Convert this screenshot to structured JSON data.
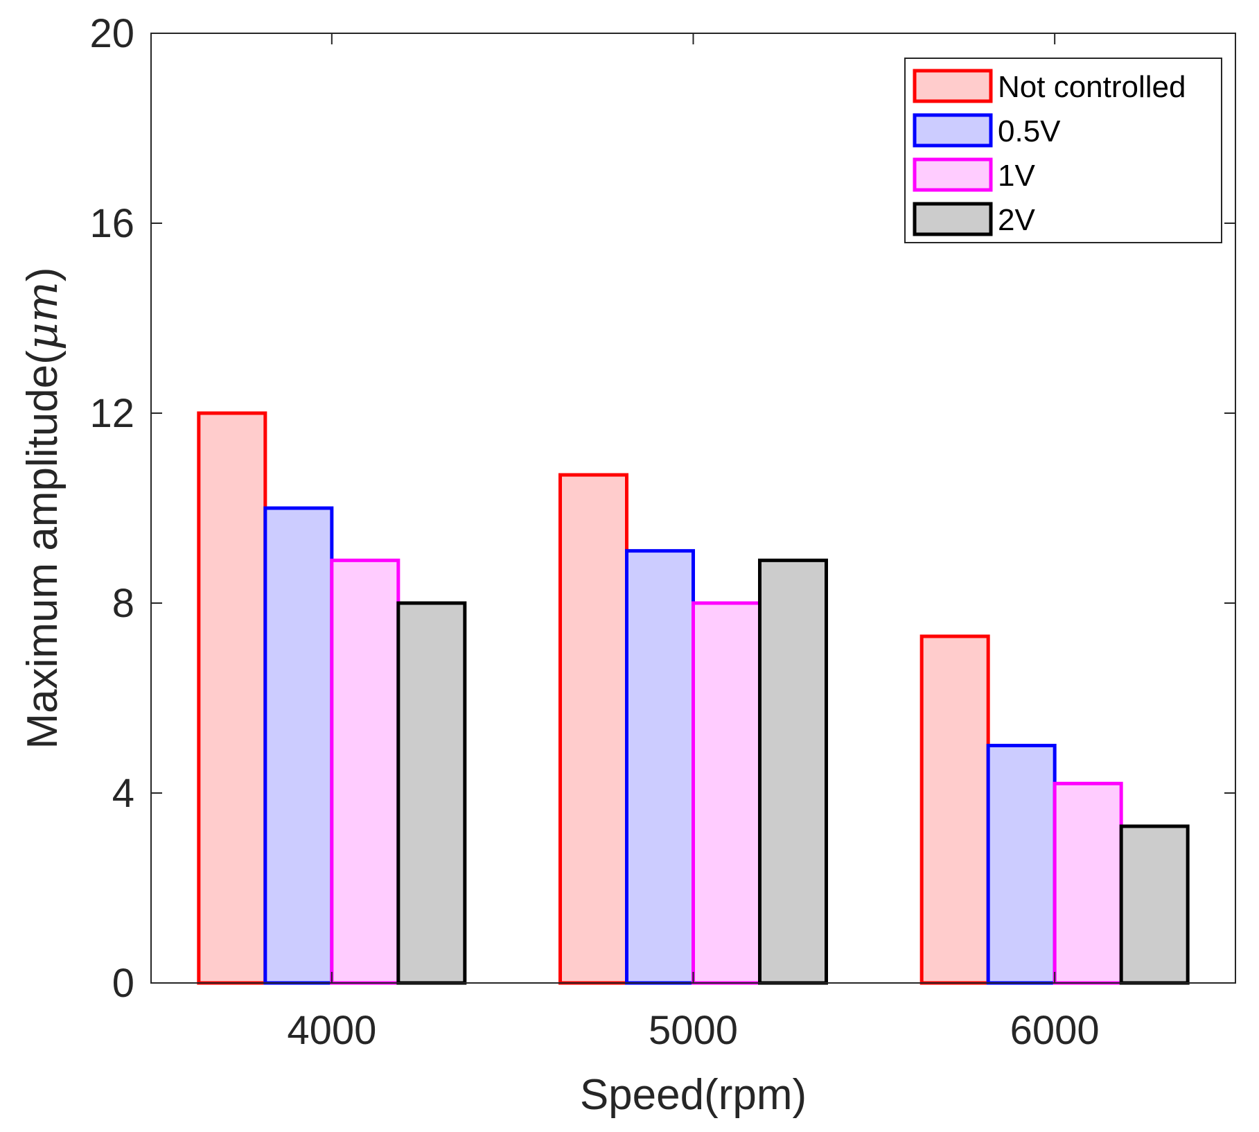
{
  "chart_data": {
    "type": "bar",
    "title": "",
    "xlabel": "Speed(rpm)",
    "ylabel_prefix": "Maximum amplitude(",
    "ylabel_unit": "μm",
    "ylabel_suffix": ")",
    "categories": [
      "4000",
      "5000",
      "6000"
    ],
    "ylim": [
      0,
      20
    ],
    "yticks": [
      0,
      4,
      8,
      12,
      16,
      20
    ],
    "ytick_labels": [
      "0",
      "4",
      "8",
      "12",
      "16",
      "20"
    ],
    "grid": false,
    "legend_position": "top-right",
    "series": [
      {
        "name": "Not controlled",
        "values": [
          12.0,
          10.7,
          7.3
        ],
        "edge_color": "#ff0000",
        "fill_color": "#ffcccc"
      },
      {
        "name": "0.5V",
        "values": [
          10.0,
          9.1,
          5.0
        ],
        "edge_color": "#0000ff",
        "fill_color": "#ccccff"
      },
      {
        "name": "1V",
        "values": [
          8.9,
          8.0,
          4.2
        ],
        "edge_color": "#ff00ff",
        "fill_color": "#ffccff"
      },
      {
        "name": "2V",
        "values": [
          8.0,
          8.9,
          3.3
        ],
        "edge_color": "#000000",
        "fill_color": "#cccccc"
      }
    ]
  }
}
